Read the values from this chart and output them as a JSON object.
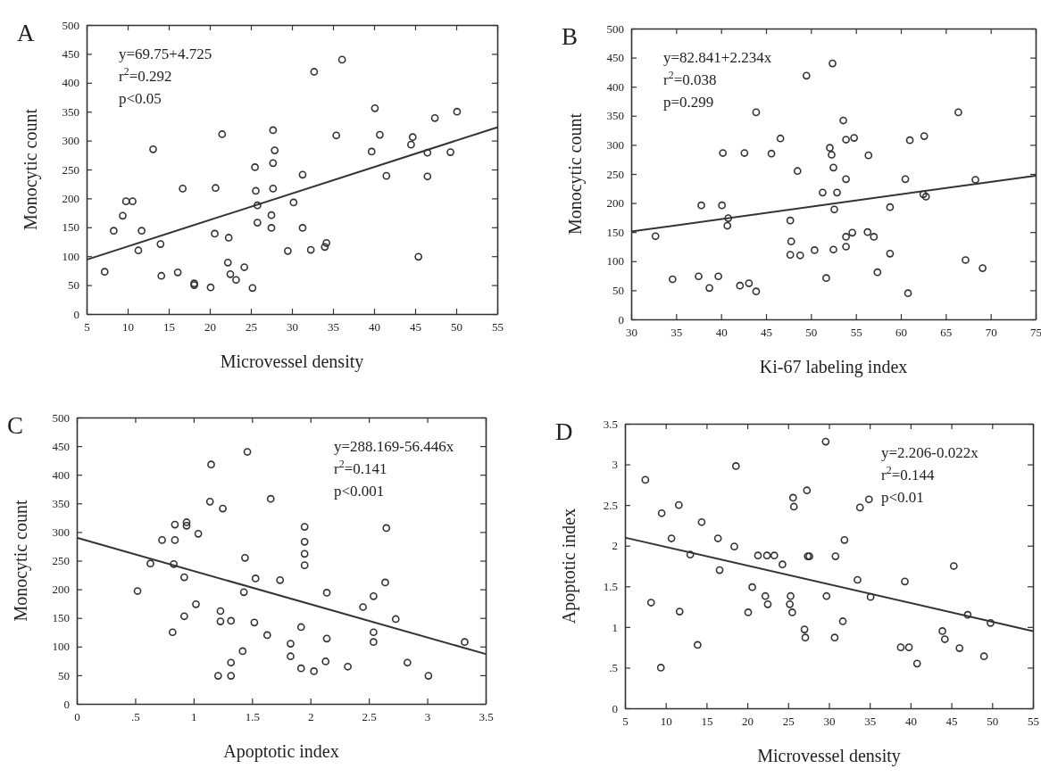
{
  "chart_data": [
    {
      "type": "scatter",
      "title": "A",
      "xlabel": "Microvessel density",
      "ylabel": "Monocytic count",
      "xlim": [
        5,
        55
      ],
      "xticks": [
        5,
        10,
        15,
        20,
        25,
        30,
        35,
        40,
        45,
        50,
        55
      ],
      "ylim": [
        0,
        500
      ],
      "yticks": [
        0,
        50,
        100,
        150,
        200,
        250,
        300,
        350,
        400,
        450,
        500
      ],
      "annotations": [
        "y=69.75+4.725",
        "r$^{2}$=0.292",
        "p<0.05"
      ],
      "series": [
        {
          "marker": "circle",
          "color": "#333333",
          "x": [
            7.2,
            8.3,
            9.4,
            9.8,
            10.6,
            11.3,
            11.7,
            13.1,
            14.0,
            14.1,
            16.1,
            16.7,
            18.1,
            18.1,
            20.1,
            20.6,
            20.7,
            21.5,
            22.3,
            22.2,
            22.5,
            23.2,
            24.2,
            25.2,
            25.5,
            25.6,
            25.8,
            25.8,
            27.5,
            27.5,
            27.7,
            27.7,
            27.7,
            27.9,
            29.5,
            30.2,
            31.3,
            31.3,
            32.3,
            32.7,
            34.0,
            34.2,
            35.4,
            36.1,
            39.7,
            40.1,
            40.7,
            41.5,
            44.5,
            44.7,
            45.4,
            46.5,
            46.5,
            47.4,
            49.3,
            50.1
          ],
          "values": [
            73,
            144,
            170,
            195,
            195,
            110,
            144,
            285,
            121,
            66,
            72,
            217,
            53,
            50,
            46,
            139,
            218,
            311,
            132,
            89,
            69,
            59,
            81,
            45,
            254,
            213,
            188,
            158,
            149,
            171,
            318,
            217,
            261,
            283,
            109,
            193,
            241,
            149,
            111,
            419,
            116,
            123,
            309,
            440,
            281,
            356,
            310,
            239,
            293,
            306,
            99,
            238,
            279,
            339,
            280,
            350
          ]
        },
        {
          "type": "line",
          "marker": "none",
          "color": "#333333",
          "x": [
            5,
            55
          ],
          "values": [
            94,
            323
          ]
        }
      ]
    },
    {
      "type": "scatter",
      "title": "B",
      "xlabel": "Ki-67 labeling index",
      "ylabel": "Monocytic count",
      "xlim": [
        30,
        75
      ],
      "xticks": [
        30,
        35,
        40,
        45,
        50,
        55,
        60,
        65,
        70,
        75
      ],
      "ylim": [
        0,
        500
      ],
      "yticks": [
        0,
        50,
        100,
        150,
        200,
        250,
        300,
        350,
        400,
        450,
        500
      ],
      "annotations": [
        "y=82.841+2.234x",
        "r$^{2}$=0.038",
        "p=0.299"
      ],
      "series": [
        {
          "marker": "circle",
          "color": "#333333",
          "x": [
            32.7,
            34.6,
            37.5,
            37.8,
            38.7,
            39.7,
            40.2,
            40.1,
            40.8,
            40.7,
            42.1,
            42.6,
            43.1,
            43.9,
            43.9,
            45.6,
            46.6,
            47.7,
            47.8,
            47.7,
            48.5,
            48.8,
            49.5,
            50.4,
            51.3,
            51.7,
            52.1,
            52.3,
            52.4,
            52.5,
            52.5,
            52.6,
            52.9,
            53.6,
            53.9,
            53.9,
            53.9,
            53.9,
            54.6,
            54.8,
            56.3,
            56.4,
            57.0,
            57.4,
            58.8,
            58.8,
            60.5,
            60.8,
            61.0,
            62.6,
            62.5,
            62.8,
            66.4,
            67.2,
            68.3,
            69.1
          ],
          "values": [
            143,
            69,
            74,
            196,
            54,
            74,
            286,
            196,
            174,
            161,
            58,
            286,
            62,
            356,
            48,
            285,
            311,
            170,
            134,
            111,
            255,
            110,
            419,
            119,
            218,
            71,
            295,
            283,
            440,
            120,
            261,
            189,
            218,
            342,
            309,
            241,
            142,
            125,
            149,
            312,
            150,
            282,
            142,
            81,
            193,
            113,
            241,
            45,
            308,
            315,
            215,
            211,
            356,
            102,
            240,
            88
          ]
        },
        {
          "type": "line",
          "marker": "none",
          "color": "#333333",
          "x": [
            30,
            75
          ],
          "values": [
            151,
            247
          ]
        }
      ]
    },
    {
      "type": "scatter",
      "title": "C",
      "xlabel": "Apoptotic index",
      "ylabel": "Monocytic count",
      "xlim": [
        0,
        3.5
      ],
      "xticks": [
        0,
        {
          "value": 0.5,
          "label": ".5"
        },
        1,
        1.5,
        2,
        2.5,
        3,
        3.5
      ],
      "ylim": [
        0,
        500
      ],
      "yticks": [
        0,
        50,
        100,
        150,
        200,
        250,
        300,
        350,
        400,
        450,
        500
      ],
      "annotations": [
        "y=288.169-56.446x",
        "r$^{2}$=0.141",
        "p<0.001"
      ],
      "series": [
        {
          "marker": "circle",
          "color": "#333333",
          "x": [
            0.52,
            0.63,
            0.73,
            0.82,
            0.84,
            0.84,
            0.83,
            0.92,
            0.92,
            0.94,
            0.94,
            1.02,
            1.04,
            1.14,
            1.15,
            1.21,
            1.23,
            1.23,
            1.25,
            1.32,
            1.32,
            1.32,
            1.42,
            1.43,
            1.44,
            1.46,
            1.52,
            1.53,
            1.63,
            1.66,
            1.74,
            1.83,
            1.83,
            1.92,
            1.92,
            1.95,
            1.95,
            1.95,
            1.95,
            2.03,
            2.13,
            2.14,
            2.14,
            2.32,
            2.45,
            2.54,
            2.54,
            2.54,
            2.64,
            2.65,
            2.73,
            2.83,
            3.01,
            3.32
          ],
          "values": [
            197,
            245,
            286,
            125,
            286,
            313,
            244,
            153,
            221,
            317,
            311,
            174,
            297,
            353,
            418,
            49,
            162,
            144,
            341,
            49,
            72,
            145,
            92,
            195,
            255,
            440,
            142,
            219,
            120,
            358,
            216,
            105,
            83,
            134,
            62,
            309,
            283,
            262,
            242,
            57,
            74,
            114,
            194,
            65,
            169,
            188,
            125,
            108,
            212,
            307,
            148,
            72,
            49,
            108
          ]
        },
        {
          "type": "line",
          "marker": "none",
          "color": "#333333",
          "x": [
            0,
            3.5
          ],
          "values": [
            290,
            87
          ]
        }
      ]
    },
    {
      "type": "scatter",
      "title": "D",
      "xlabel": "Microvessel density",
      "ylabel": "Apoptotic index",
      "xlim": [
        5,
        55
      ],
      "xticks": [
        5,
        10,
        15,
        20,
        25,
        30,
        35,
        40,
        45,
        50,
        55
      ],
      "ylim": [
        0,
        3.5
      ],
      "yticks": [
        0,
        {
          "value": 0.5,
          "label": ".5"
        },
        1,
        1.5,
        2,
        2.5,
        3,
        3.5
      ],
      "annotations": [
        "y=2.206-0.022x",
        "r$^{2}$=0.144",
        "p<0.01"
      ],
      "series": [
        {
          "marker": "circle",
          "color": "#333333",
          "x": [
            7.5,
            8.2,
            9.5,
            9.4,
            10.7,
            11.6,
            11.7,
            13.0,
            13.9,
            14.4,
            16.4,
            16.6,
            18.4,
            18.6,
            20.1,
            20.6,
            21.3,
            22.2,
            22.4,
            22.5,
            23.3,
            24.3,
            25.3,
            25.2,
            25.5,
            25.6,
            25.7,
            27.0,
            27.1,
            27.3,
            27.4,
            27.6,
            29.6,
            29.7,
            30.7,
            30.8,
            31.7,
            31.9,
            33.5,
            33.8,
            34.9,
            35.1,
            38.8,
            39.3,
            39.8,
            40.8,
            43.9,
            44.2,
            45.3,
            46.0,
            47.0,
            49.0,
            49.8
          ],
          "values": [
            2.81,
            1.3,
            2.4,
            0.5,
            2.09,
            2.5,
            1.19,
            1.89,
            0.78,
            2.29,
            2.09,
            1.7,
            1.99,
            2.98,
            1.18,
            1.49,
            1.88,
            1.38,
            1.88,
            1.28,
            1.88,
            1.77,
            1.38,
            1.28,
            1.18,
            2.59,
            2.48,
            0.97,
            0.87,
            2.68,
            1.87,
            1.87,
            3.28,
            1.38,
            0.87,
            1.87,
            1.07,
            2.07,
            1.58,
            2.47,
            2.57,
            1.37,
            0.75,
            1.56,
            0.75,
            0.55,
            0.95,
            0.85,
            1.75,
            0.74,
            1.15,
            0.64,
            1.05
          ]
        },
        {
          "type": "line",
          "marker": "none",
          "color": "#333333",
          "x": [
            5,
            55
          ],
          "values": [
            2.1,
            0.95
          ]
        }
      ]
    }
  ]
}
